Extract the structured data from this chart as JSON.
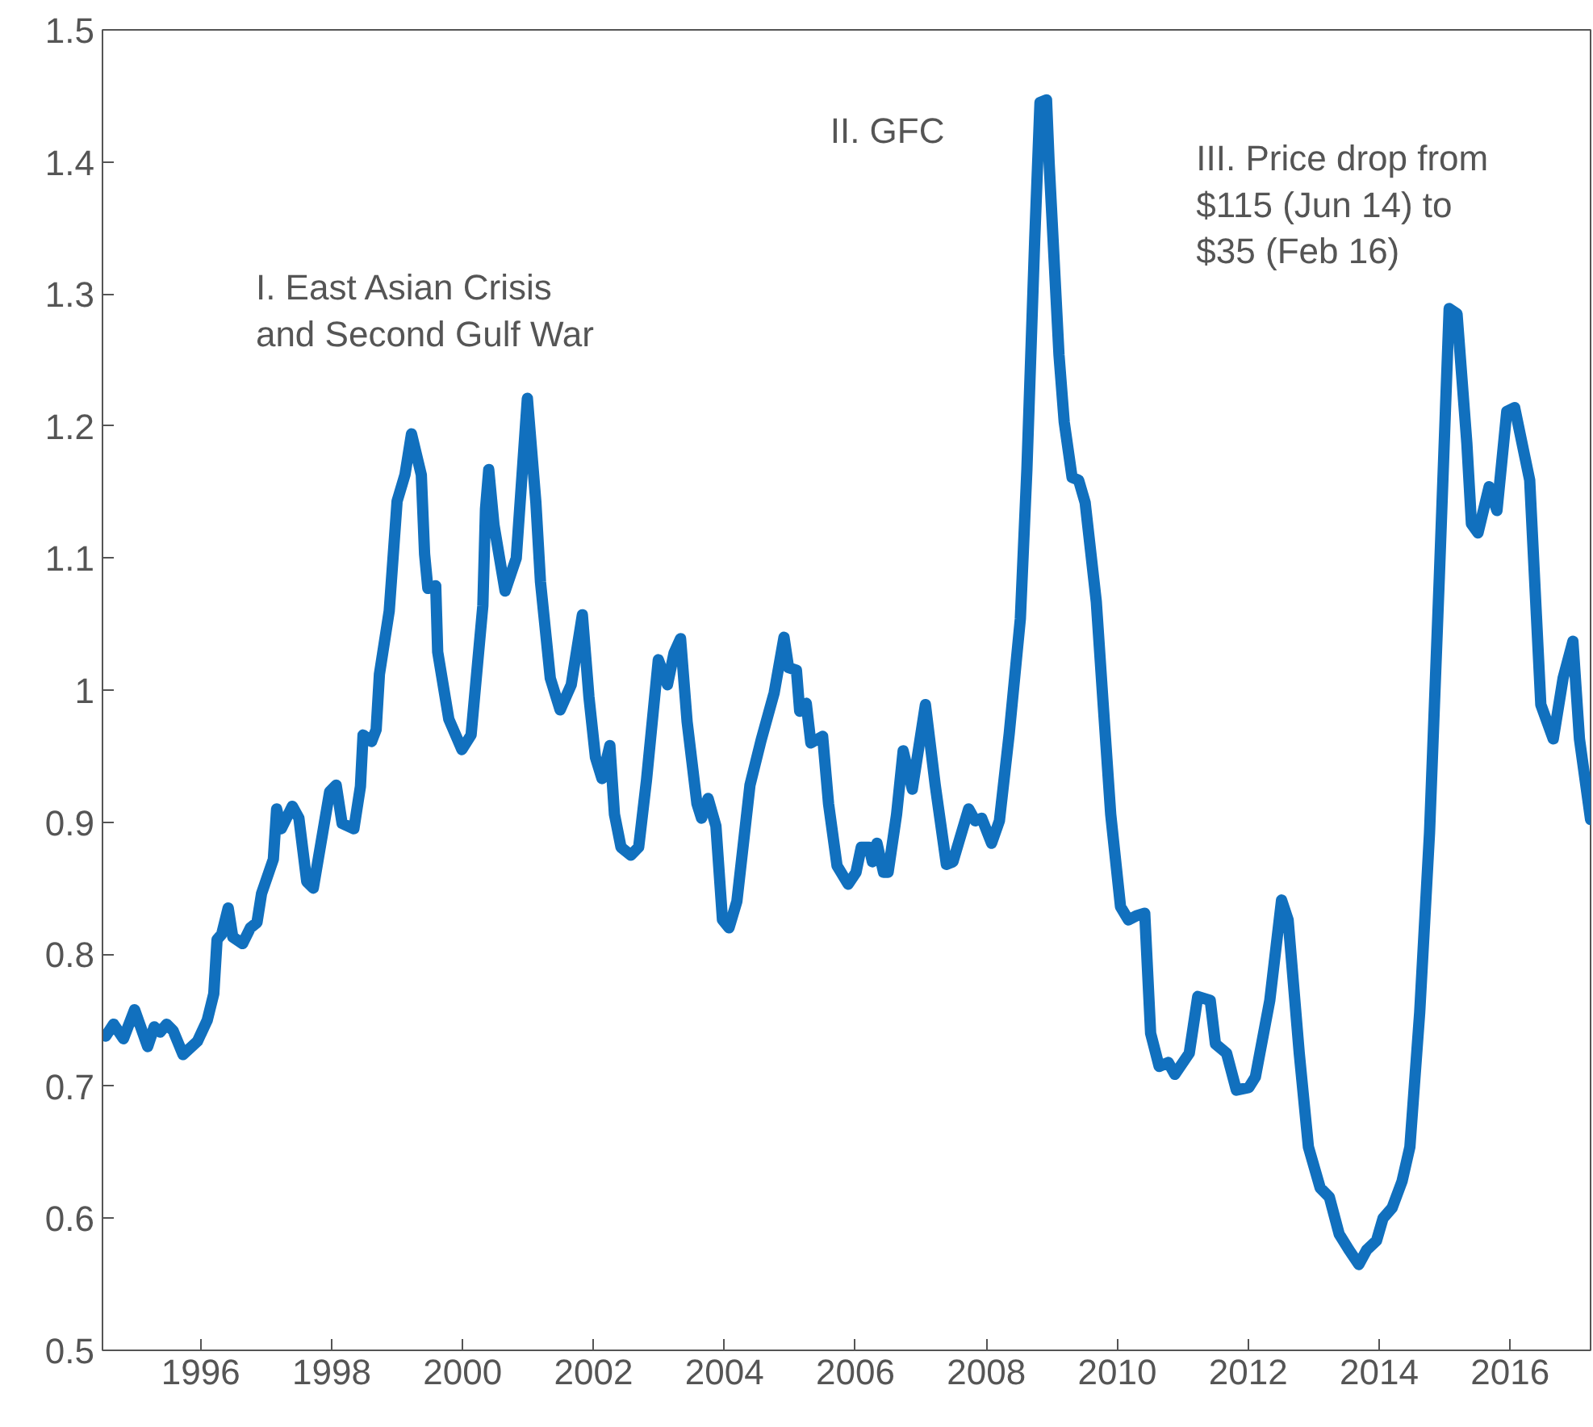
{
  "chart_data": {
    "type": "line",
    "x": [
      1994.55,
      1994.67,
      1994.82,
      1994.99,
      1995.19,
      1995.29,
      1995.38,
      1995.48,
      1995.58,
      1995.73,
      1995.95,
      1996.1,
      1996.2,
      1996.25,
      1996.32,
      1996.42,
      1996.49,
      1996.64,
      1996.76,
      1996.86,
      1996.93,
      1997.11,
      1997.16,
      1997.23,
      1997.4,
      1997.5,
      1997.62,
      1997.72,
      1997.97,
      1998.07,
      1998.16,
      1998.34,
      1998.44,
      1998.48,
      1998.61,
      1998.68,
      1998.73,
      1998.88,
      1999.0,
      1999.12,
      1999.22,
      1999.37,
      1999.42,
      1999.47,
      1999.59,
      1999.62,
      1999.79,
      1999.99,
      2000.13,
      2000.31,
      2000.35,
      2000.4,
      2000.48,
      2000.65,
      2000.82,
      2000.99,
      2001.12,
      2001.19,
      2001.34,
      2001.49,
      2001.66,
      2001.83,
      2001.93,
      2002.03,
      2002.13,
      2002.25,
      2002.32,
      2002.42,
      2002.57,
      2002.69,
      2002.81,
      2002.99,
      2003.13,
      2003.23,
      2003.33,
      2003.43,
      2003.58,
      2003.65,
      2003.75,
      2003.87,
      2003.97,
      2004.07,
      2004.19,
      2004.39,
      2004.56,
      2004.76,
      2004.91,
      2004.98,
      2005.1,
      2005.15,
      2005.25,
      2005.32,
      2005.5,
      2005.59,
      2005.72,
      2005.89,
      2006.01,
      2006.09,
      2006.21,
      2006.26,
      2006.33,
      2006.43,
      2006.5,
      2006.63,
      2006.73,
      2006.87,
      2007.07,
      2007.22,
      2007.39,
      2007.49,
      2007.73,
      2007.83,
      2007.93,
      2008.08,
      2008.2,
      2008.35,
      2008.52,
      2008.62,
      2008.74,
      2008.82,
      2008.92,
      2008.96,
      2009.11,
      2009.19,
      2009.31,
      2009.41,
      2009.51,
      2009.68,
      2009.78,
      2009.9,
      2010.05,
      2010.17,
      2010.29,
      2010.42,
      2010.51,
      2010.64,
      2010.78,
      2010.88,
      2011.1,
      2011.23,
      2011.42,
      2011.5,
      2011.67,
      2011.82,
      2012.01,
      2012.11,
      2012.33,
      2012.51,
      2012.61,
      2012.78,
      2012.92,
      2013.1,
      2013.24,
      2013.39,
      2013.54,
      2013.69,
      2013.81,
      2013.96,
      2014.06,
      2014.2,
      2014.35,
      2014.47,
      2014.62,
      2014.77,
      2014.92,
      2015.07,
      2015.19,
      2015.34,
      2015.41,
      2015.51,
      2015.68,
      2015.8,
      2015.95,
      2016.07,
      2016.3,
      2016.47,
      2016.66,
      2016.81,
      2016.96,
      2017.06,
      2017.23
    ],
    "series": [
      {
        "color": "#1170be",
        "values": [
          0.738,
          0.747,
          0.736,
          0.758,
          0.73,
          0.745,
          0.741,
          0.747,
          0.742,
          0.724,
          0.734,
          0.75,
          0.77,
          0.811,
          0.815,
          0.835,
          0.813,
          0.808,
          0.82,
          0.824,
          0.846,
          0.872,
          0.91,
          0.895,
          0.912,
          0.903,
          0.855,
          0.85,
          0.923,
          0.928,
          0.899,
          0.895,
          0.927,
          0.966,
          0.961,
          0.97,
          1.012,
          1.06,
          1.143,
          1.163,
          1.194,
          1.163,
          1.103,
          1.077,
          1.079,
          1.029,
          0.978,
          0.955,
          0.966,
          1.064,
          1.137,
          1.167,
          1.125,
          1.075,
          1.1,
          1.221,
          1.142,
          1.082,
          1.009,
          0.985,
          1.004,
          1.057,
          0.995,
          0.949,
          0.933,
          0.958,
          0.906,
          0.881,
          0.875,
          0.881,
          0.932,
          1.023,
          1.004,
          1.028,
          1.039,
          0.976,
          0.914,
          0.903,
          0.918,
          0.897,
          0.826,
          0.82,
          0.84,
          0.928,
          0.962,
          0.998,
          1.04,
          1.017,
          1.015,
          0.984,
          0.99,
          0.96,
          0.965,
          0.914,
          0.867,
          0.853,
          0.862,
          0.881,
          0.881,
          0.87,
          0.884,
          0.862,
          0.862,
          0.906,
          0.954,
          0.925,
          0.989,
          0.928,
          0.868,
          0.87,
          0.91,
          0.901,
          0.903,
          0.884,
          0.901,
          0.967,
          1.054,
          1.167,
          1.342,
          1.445,
          1.447,
          1.399,
          1.254,
          1.203,
          1.161,
          1.159,
          1.142,
          1.067,
          0.993,
          0.906,
          0.836,
          0.826,
          0.829,
          0.831,
          0.74,
          0.715,
          0.718,
          0.709,
          0.725,
          0.768,
          0.765,
          0.732,
          0.725,
          0.697,
          0.699,
          0.707,
          0.765,
          0.841,
          0.826,
          0.725,
          0.654,
          0.623,
          0.616,
          0.588,
          0.576,
          0.565,
          0.576,
          0.583,
          0.6,
          0.608,
          0.628,
          0.654,
          0.756,
          0.892,
          1.086,
          1.289,
          1.285,
          1.187,
          1.126,
          1.119,
          1.154,
          1.136,
          1.211,
          1.214,
          1.159,
          0.989,
          0.963,
          1.009,
          1.037,
          0.963,
          0.902
        ]
      }
    ],
    "xlim": [
      1994.5,
      2017.23
    ],
    "xticks": [
      1996,
      1998,
      2000,
      2002,
      2004,
      2006,
      2008,
      2010,
      2012,
      2014,
      2016
    ],
    "ylim": [
      0.5,
      1.5
    ],
    "yticks": [
      0.5,
      0.6,
      0.7,
      0.8,
      0.9,
      1,
      1.1,
      1.2,
      1.3,
      1.4,
      1.5
    ],
    "grid": false,
    "line_style": "solid",
    "marker": "none",
    "annotations": [
      "I. East Asian Crisis\nand Second Gulf War",
      "II. GFC",
      "III. Price drop from\n$115 (Jun 14) to\n$35 (Feb 16)"
    ]
  }
}
